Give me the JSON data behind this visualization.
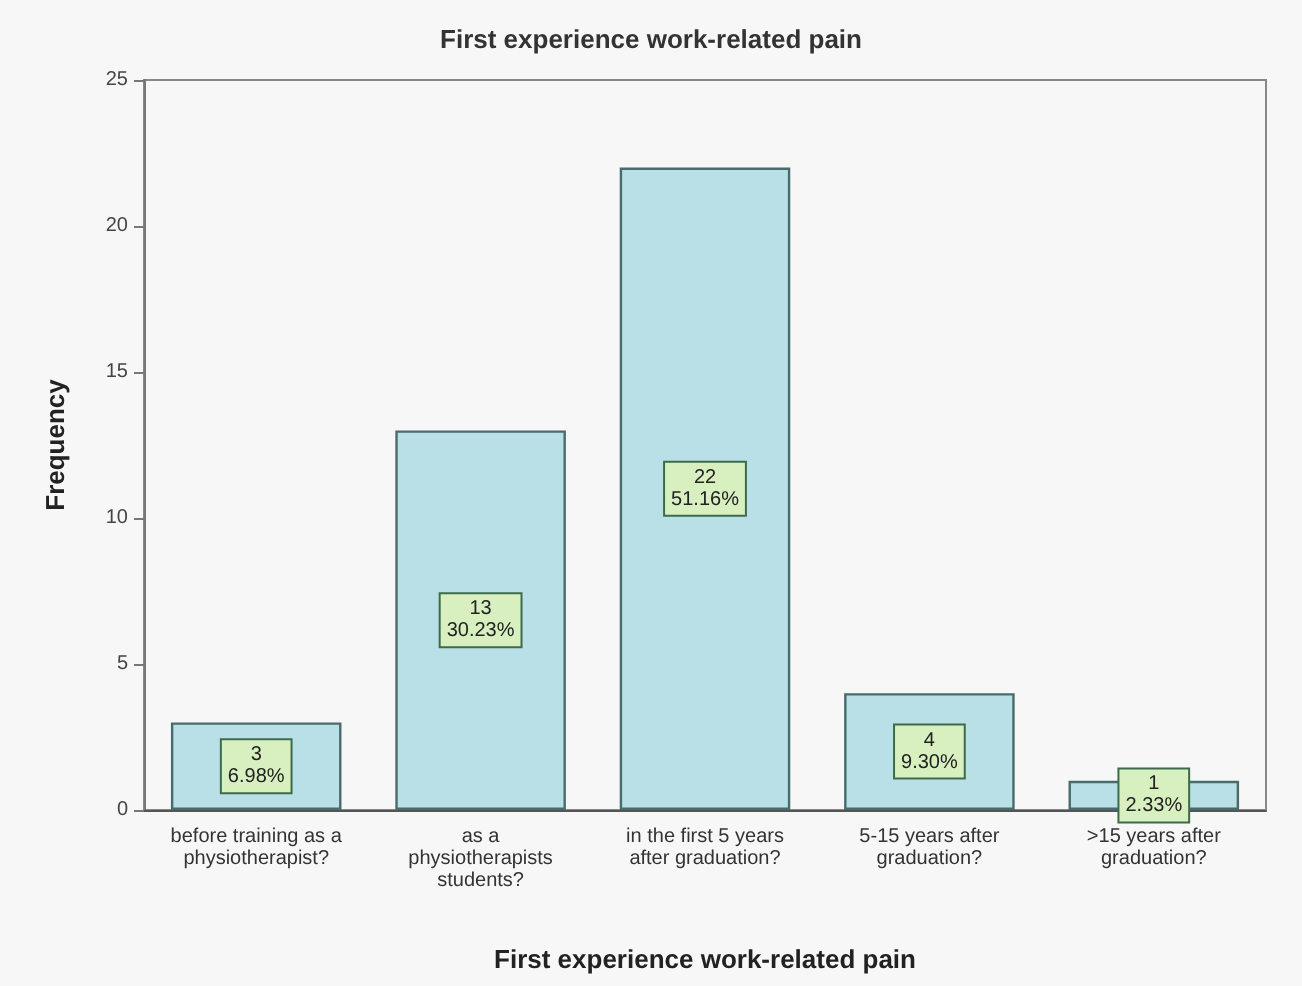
{
  "chart_data": {
    "type": "bar",
    "title": "First experience work-related pain",
    "xlabel": "First experience work-related pain",
    "ylabel": "Frequency",
    "categories": [
      "before training as a\nphysiotherapist?",
      "as a\nphysiotherapists\nstudents?",
      "in the first 5 years\nafter graduation?",
      "5-15 years after\ngraduation?",
      ">15 years after\ngraduation?"
    ],
    "values": [
      3,
      13,
      22,
      4,
      1
    ],
    "value_labels": [
      "3\n6.98%",
      "13\n30.23%",
      "22\n51.16%",
      "4\n9.30%",
      "1\n2.33%"
    ],
    "color": "#b8e0e6",
    "ylim": [
      0,
      25
    ],
    "yticks": [
      0,
      5,
      10,
      15,
      20,
      25
    ],
    "grid": false
  }
}
